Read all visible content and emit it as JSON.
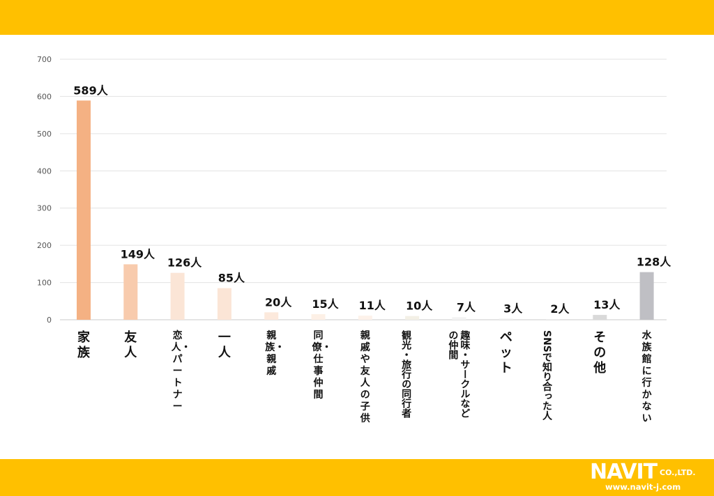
{
  "chart_data": {
    "type": "bar",
    "categories": [
      "家族",
      "友人",
      "恋人・パートナー",
      "一人",
      "親族・親戚",
      "同僚・仕事仲間",
      "親戚や友人の子供",
      "観光・旅行の同行者",
      "趣味・サークルなどの仲間",
      "ペット",
      "SNSで知り合った人",
      "その他",
      "水族館に行かない"
    ],
    "values": [
      589,
      149,
      126,
      85,
      20,
      15,
      11,
      10,
      7,
      3,
      2,
      13,
      128
    ],
    "data_labels": [
      "589人",
      "149人",
      "126人",
      "85人",
      "20人",
      "15人",
      "11人",
      "10人",
      "7人",
      "3人",
      "2人",
      "13人",
      "128人"
    ],
    "colors": [
      "#F4B183",
      "#F8CBAD",
      "#FBE5D6",
      "#FBE5D6",
      "#FCE9DC",
      "#FDF0E6",
      "#FDF2EA",
      "#F3F0E6",
      "#F3F3F3",
      "#EEEEEE",
      "#EEEEEE",
      "#D9D9D9",
      "#BFBFC4"
    ],
    "ylim": [
      0,
      700
    ],
    "yticks": [
      0,
      100,
      200,
      300,
      400,
      500,
      600,
      700
    ],
    "ytick_labels": [
      "0",
      "100",
      "200",
      "300",
      "400",
      "500",
      "600",
      "700"
    ],
    "grid": true,
    "title": "",
    "xlabel": "",
    "ylabel": ""
  },
  "logo": {
    "main": "NAVIT",
    "suffix": "CO.,LTD.",
    "url": "www.navit-j.com"
  },
  "theme": {
    "band_color": "#FFC000"
  }
}
